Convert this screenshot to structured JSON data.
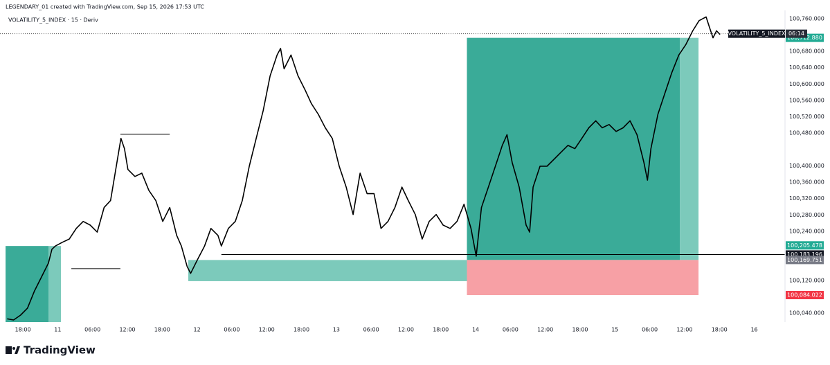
{
  "header": {
    "attribution": "LEGENDARY_01 created with TradingView.com, Sep 15, 2026 17:53 UTC",
    "symbol": "VOLATILITY_5_INDEX · 15 · Deriv"
  },
  "chart_data": {
    "type": "line",
    "color": "#000000",
    "x": [
      -2.7,
      -1.6,
      -0.4,
      0.8,
      2.0,
      3.2,
      4.4,
      5.0,
      5.6,
      6.8,
      8.0,
      9.2,
      10.4,
      11.6,
      12.8,
      14.0,
      15.1,
      16.1,
      16.9,
      17.5,
      18.1,
      19.3,
      20.5,
      21.7,
      22.9,
      24.1,
      25.3,
      26.5,
      27.3,
      28.3,
      28.9,
      30.1,
      31.3,
      32.4,
      33.6,
      34.2,
      35.4,
      36.6,
      37.8,
      39.0,
      40.2,
      41.4,
      42.6,
      43.8,
      44.4,
      45.0,
      46.2,
      47.4,
      48.6,
      49.7,
      50.9,
      52.1,
      53.3,
      54.5,
      55.7,
      56.9,
      58.1,
      59.3,
      60.5,
      61.7,
      62.9,
      64.1,
      65.3,
      66.4,
      67.6,
      68.8,
      70.0,
      71.2,
      72.4,
      73.6,
      74.8,
      76.0,
      77.2,
      78.1,
      79.0,
      80.2,
      81.4,
      82.6,
      83.4,
      84.3,
      85.5,
      86.7,
      87.3,
      87.9,
      89.1,
      90.3,
      91.5,
      92.7,
      93.9,
      95.1,
      96.3,
      97.5,
      98.7,
      99.8,
      101.0,
      102.2,
      103.4,
      104.6,
      105.8,
      107.0,
      107.6,
      108.2,
      109.4,
      110.6,
      111.8,
      113.0,
      114.2,
      115.4,
      116.5,
      117.7,
      118.3,
      118.9,
      119.5,
      120.1
    ],
    "values": [
      100026,
      100023,
      100035,
      100052,
      100094,
      100128,
      100162,
      100196,
      100204,
      100213,
      100221,
      100247,
      100264,
      100255,
      100238,
      100298,
      100315,
      100399,
      100467,
      100442,
      100391,
      100374,
      100382,
      100340,
      100315,
      100264,
      100298,
      100230,
      100204,
      100154,
      100137,
      100171,
      100204,
      100247,
      100230,
      100204,
      100247,
      100264,
      100315,
      100399,
      100467,
      100535,
      100620,
      100671,
      100687,
      100637,
      100671,
      100620,
      100586,
      100552,
      100526,
      100493,
      100467,
      100399,
      100348,
      100281,
      100382,
      100332,
      100332,
      100247,
      100264,
      100298,
      100348,
      100315,
      100281,
      100221,
      100264,
      100281,
      100255,
      100247,
      100264,
      100306,
      100247,
      100179,
      100298,
      100348,
      100399,
      100450,
      100476,
      100408,
      100348,
      100255,
      100238,
      100348,
      100399,
      100399,
      100416,
      100433,
      100450,
      100442,
      100467,
      100493,
      100510,
      100493,
      100501,
      100484,
      100493,
      100510,
      100476,
      100408,
      100365,
      100442,
      100526,
      100577,
      100628,
      100671,
      100696,
      100730,
      100755,
      100764,
      100738,
      100713,
      100730,
      100721
    ],
    "xlim": [
      -3.94,
      131.3
    ],
    "ylim": [
      100018,
      100780
    ],
    "grid": false,
    "xticks": [
      {
        "value": 0,
        "label": "18:00"
      },
      {
        "value": 6,
        "label": "11"
      },
      {
        "value": 12,
        "label": "06:00"
      },
      {
        "value": 18,
        "label": "12:00"
      },
      {
        "value": 24,
        "label": "18:00"
      },
      {
        "value": 30,
        "label": "12"
      },
      {
        "value": 36,
        "label": "06:00"
      },
      {
        "value": 42,
        "label": "12:00"
      },
      {
        "value": 48,
        "label": "18:00"
      },
      {
        "value": 54,
        "label": "13"
      },
      {
        "value": 60,
        "label": "06:00"
      },
      {
        "value": 66,
        "label": "12:00"
      },
      {
        "value": 72,
        "label": "18:00"
      },
      {
        "value": 78,
        "label": "14"
      },
      {
        "value": 84,
        "label": "06:00"
      },
      {
        "value": 90,
        "label": "12:00"
      },
      {
        "value": 96,
        "label": "18:00"
      },
      {
        "value": 102,
        "label": "15"
      },
      {
        "value": 108,
        "label": "06:00"
      },
      {
        "value": 114,
        "label": "12:00"
      },
      {
        "value": 120,
        "label": "18:00"
      },
      {
        "value": 126,
        "label": "16"
      }
    ],
    "yticks": [
      {
        "value": 100760,
        "label": "100,760.000"
      },
      {
        "value": 100680,
        "label": "100,680.000"
      },
      {
        "value": 100640,
        "label": "100,640.000"
      },
      {
        "value": 100600,
        "label": "100,600.000"
      },
      {
        "value": 100560,
        "label": "100,560.000"
      },
      {
        "value": 100520,
        "label": "100,520.000"
      },
      {
        "value": 100480,
        "label": "100,480.000"
      },
      {
        "value": 100400,
        "label": "100,400.000"
      },
      {
        "value": 100360,
        "label": "100,360.000"
      },
      {
        "value": 100320,
        "label": "100,320.000"
      },
      {
        "value": 100280,
        "label": "100,280.000"
      },
      {
        "value": 100240,
        "label": "100,240.000"
      },
      {
        "value": 100120,
        "label": "100,120.000"
      },
      {
        "value": 100040,
        "label": "100,040.000"
      }
    ],
    "price_labels": [
      {
        "value": 100712.88,
        "label": "100,712.880",
        "color": "#22ab94"
      },
      {
        "value": 100205.478,
        "label": "100,205.478",
        "color": "#22ab94"
      },
      {
        "value": 100183.196,
        "label": "100,183.196",
        "color": "#131722"
      },
      {
        "value": 100169.751,
        "label": "100,169.751",
        "color": "#787b86"
      },
      {
        "value": 100084.022,
        "label": "100,084.022",
        "color": "#f23645"
      }
    ],
    "current_price": {
      "value": 100723,
      "symbol": "VOLATILITY_5_INDEX",
      "countdown": "06:14"
    },
    "zones": [
      {
        "x": [
          -2.98,
          4.41
        ],
        "y": [
          100018,
          100204
        ],
        "color": "#3aab98"
      },
      {
        "x": [
          4.41,
          6.56
        ],
        "y": [
          100018,
          100204
        ],
        "color": "#7ccabb"
      },
      {
        "x": [
          28.5,
          76.5
        ],
        "y": [
          100118,
          100169.751
        ],
        "color": "#7ccabb"
      },
      {
        "x": [
          76.5,
          113.2
        ],
        "y": [
          100169.751,
          100712.88
        ],
        "color": "#3aab98"
      },
      {
        "x": [
          113.2,
          116.4
        ],
        "y": [
          100169.751,
          100712.88
        ],
        "color": "#7ccabb"
      },
      {
        "x": [
          76.5,
          116.4
        ],
        "y": [
          100084.022,
          100169.751
        ],
        "color": "#f7a0a5"
      }
    ],
    "lines": [
      {
        "x": [
          16.8,
          25.3
        ],
        "value": 100477
      },
      {
        "x": [
          8.35,
          16.8
        ],
        "value": 100148.5
      },
      {
        "x": [
          34.2,
          131.3
        ],
        "value": 100183.196
      }
    ]
  },
  "footer": {
    "logo": "TradingView"
  }
}
